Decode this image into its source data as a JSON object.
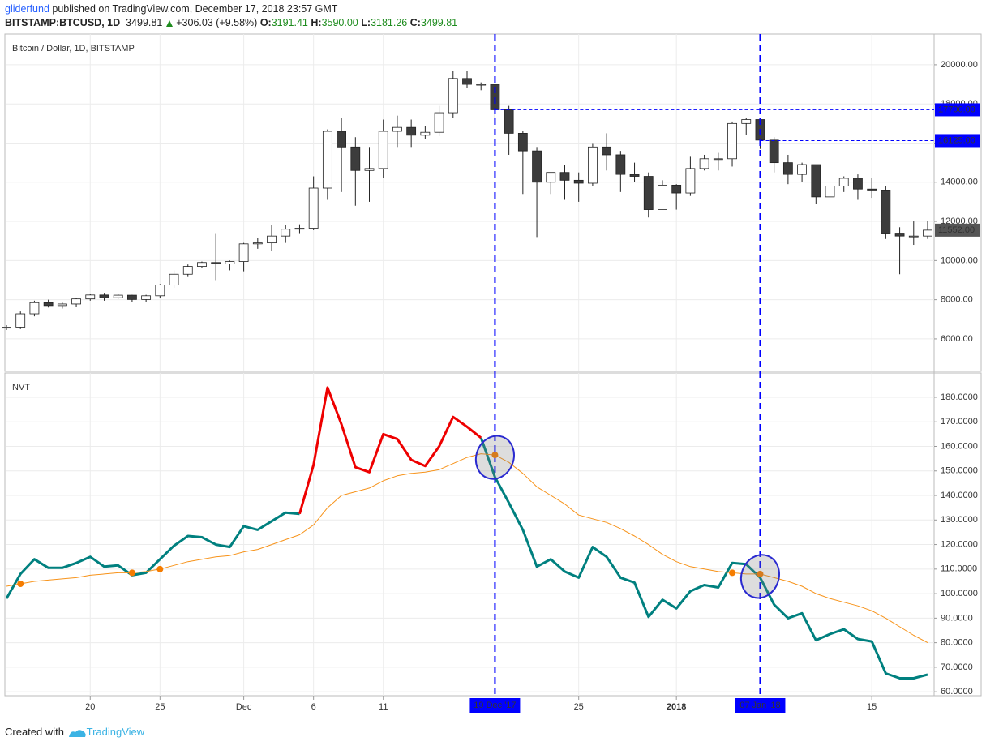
{
  "header": {
    "author": "gliderfund",
    "published": "published on TradingView.com, December 17, 2018 23:57 GMT",
    "symbol": "BITSTAMP:BTCUSD, 1D",
    "price": "3499.81",
    "change": "+306.03 (+9.58%)",
    "open_label": "O:",
    "open": "3191.41",
    "high_label": "H:",
    "high": "3590.00",
    "low_label": "L:",
    "low": "3181.26",
    "close_label": "C:",
    "close": "3499.81"
  },
  "footer": {
    "created": "Created with",
    "brand": "TradingView"
  },
  "chart_data": [
    {
      "type": "candlestick",
      "title": "Bitcoin / Dollar, 1D, BITSTAMP",
      "x": [
        "2017-11-14",
        "2017-11-15",
        "2017-11-16",
        "2017-11-17",
        "2017-11-18",
        "2017-11-19",
        "2017-11-20",
        "2017-11-21",
        "2017-11-22",
        "2017-11-23",
        "2017-11-24",
        "2017-11-25",
        "2017-11-26",
        "2017-11-27",
        "2017-11-28",
        "2017-11-29",
        "2017-11-30",
        "2017-12-01",
        "2017-12-02",
        "2017-12-03",
        "2017-12-04",
        "2017-12-05",
        "2017-12-06",
        "2017-12-07",
        "2017-12-08",
        "2017-12-09",
        "2017-12-10",
        "2017-12-11",
        "2017-12-12",
        "2017-12-13",
        "2017-12-14",
        "2017-12-15",
        "2017-12-16",
        "2017-12-17",
        "2017-12-18",
        "2017-12-19",
        "2017-12-20",
        "2017-12-21",
        "2017-12-22",
        "2017-12-23",
        "2017-12-24",
        "2017-12-25",
        "2017-12-26",
        "2017-12-27",
        "2017-12-28",
        "2017-12-29",
        "2017-12-30",
        "2017-12-31",
        "2018-01-01",
        "2018-01-02",
        "2018-01-03",
        "2018-01-04",
        "2018-01-05",
        "2018-01-06",
        "2018-01-07",
        "2018-01-08",
        "2018-01-09",
        "2018-01-10",
        "2018-01-11",
        "2018-01-12",
        "2018-01-13",
        "2018-01-14",
        "2018-01-15",
        "2018-01-16",
        "2018-01-17",
        "2018-01-18",
        "2018-01-19"
      ],
      "open": [
        6550,
        6600,
        7280,
        7850,
        7700,
        7780,
        8040,
        8240,
        8100,
        8230,
        8010,
        8200,
        8750,
        9300,
        9700,
        9900,
        9830,
        9950,
        10850,
        10900,
        11250,
        11600,
        11650,
        13700,
        16600,
        15800,
        14600,
        14700,
        16600,
        16800,
        16400,
        16550,
        17550,
        19300,
        19000,
        19000,
        17700,
        16500,
        15600,
        14000,
        14500,
        14100,
        13950,
        15800,
        15400,
        14400,
        14300,
        12600,
        13850,
        13450,
        14700,
        15200,
        15200,
        17000,
        17200,
        16150,
        15000,
        14400,
        14900,
        13250,
        13800,
        14200,
        13650,
        13600,
        11400,
        11250,
        11250
      ],
      "high": [
        6700,
        7400,
        7950,
        8000,
        7850,
        8100,
        8300,
        8350,
        8300,
        8250,
        8250,
        8800,
        9500,
        9800,
        9950,
        11400,
        10000,
        10900,
        11150,
        11800,
        11800,
        11850,
        14300,
        16700,
        17300,
        16300,
        15800,
        17200,
        17400,
        17200,
        16850,
        17900,
        19700,
        19700,
        19100,
        19000,
        17900,
        16600,
        15800,
        14400,
        14900,
        14500,
        16000,
        16500,
        15600,
        15000,
        14500,
        14100,
        13900,
        15300,
        15400,
        15500,
        17100,
        17300,
        17200,
        16300,
        15400,
        15000,
        14900,
        14100,
        14300,
        14400,
        14200,
        13800,
        11700,
        12000,
        12000
      ],
      "low": [
        6450,
        6500,
        7150,
        7600,
        7550,
        7650,
        7950,
        7950,
        8050,
        7900,
        7900,
        8100,
        8600,
        9200,
        9600,
        9000,
        9500,
        9450,
        10600,
        10500,
        10900,
        11400,
        11550,
        13100,
        13500,
        12800,
        13000,
        14200,
        15800,
        15800,
        16200,
        16350,
        17300,
        18800,
        18700,
        17300,
        15400,
        13400,
        11200,
        13400,
        13100,
        13000,
        13800,
        14600,
        13500,
        14000,
        12200,
        12600,
        12600,
        13300,
        14600,
        14600,
        14800,
        16400,
        15700,
        14500,
        13900,
        14000,
        12900,
        13000,
        13500,
        13100,
        13200,
        11100,
        9300,
        10800,
        11100
      ],
      "close": [
        6600,
        7280,
        7850,
        7700,
        7780,
        8040,
        8240,
        8100,
        8230,
        8010,
        8200,
        8750,
        9300,
        9700,
        9900,
        9830,
        9950,
        10850,
        10900,
        11250,
        11600,
        11650,
        13700,
        16600,
        15800,
        14600,
        14700,
        16600,
        16800,
        16400,
        16550,
        17550,
        19300,
        19000,
        19000,
        17700,
        16500,
        15600,
        14000,
        14500,
        14100,
        13950,
        15800,
        15400,
        14400,
        14300,
        12600,
        13850,
        13450,
        14700,
        15200,
        15200,
        17000,
        17200,
        16150,
        15000,
        14400,
        14900,
        13250,
        13800,
        14200,
        13650,
        13600,
        11400,
        11250,
        11250,
        11552
      ],
      "up_color": "#ffffff",
      "down_color": "#3c3c3c",
      "last_label": "11552.00",
      "xlim": [
        "2017-11-14",
        "2018-01-19"
      ],
      "xticks": [
        {
          "value": "2017-11-20",
          "label": "20"
        },
        {
          "value": "2017-11-25",
          "label": "25"
        },
        {
          "value": "2017-12-01",
          "label": "Dec"
        },
        {
          "value": "2017-12-06",
          "label": "6"
        },
        {
          "value": "2017-12-11",
          "label": "11"
        },
        {
          "value": "2017-12-25",
          "label": "25"
        },
        {
          "value": "2018-01-01",
          "label": "2018"
        },
        {
          "value": "2018-01-15",
          "label": "15"
        }
      ],
      "ylim": [
        4340,
        21570
      ],
      "yticks": [
        {
          "value": 6000,
          "label": "6000.00"
        },
        {
          "value": 8000,
          "label": "8000.00"
        },
        {
          "value": 10000,
          "label": "10000.00"
        },
        {
          "value": 12000,
          "label": "12000.00"
        },
        {
          "value": 14000,
          "label": "14000.00"
        },
        {
          "value": 16000,
          "label": "16000.00"
        },
        {
          "value": 18000,
          "label": "18000.00"
        },
        {
          "value": 20000,
          "label": "20000.00"
        }
      ],
      "grid": true,
      "annotations": [
        {
          "x": "2017-12-19",
          "x_label": "19 Dec '17",
          "y": 17700,
          "y_label": "17700.00",
          "color": "#0000ff"
        },
        {
          "x": "2018-01-07",
          "x_label": "07 Jan '18",
          "y": 16125,
          "y_label": "16125.00",
          "color": "#0000ff"
        }
      ]
    },
    {
      "type": "line",
      "title": "NVT",
      "x": [
        "2017-11-14",
        "2017-11-15",
        "2017-11-16",
        "2017-11-17",
        "2017-11-18",
        "2017-11-19",
        "2017-11-20",
        "2017-11-21",
        "2017-11-22",
        "2017-11-23",
        "2017-11-24",
        "2017-11-25",
        "2017-11-26",
        "2017-11-27",
        "2017-11-28",
        "2017-11-29",
        "2017-11-30",
        "2017-12-01",
        "2017-12-02",
        "2017-12-03",
        "2017-12-04",
        "2017-12-05",
        "2017-12-06",
        "2017-12-07",
        "2017-12-08",
        "2017-12-09",
        "2017-12-10",
        "2017-12-11",
        "2017-12-12",
        "2017-12-13",
        "2017-12-14",
        "2017-12-15",
        "2017-12-16",
        "2017-12-17",
        "2017-12-18",
        "2017-12-19",
        "2017-12-20",
        "2017-12-21",
        "2017-12-22",
        "2017-12-23",
        "2017-12-24",
        "2017-12-25",
        "2017-12-26",
        "2017-12-27",
        "2017-12-28",
        "2017-12-29",
        "2017-12-30",
        "2017-12-31",
        "2018-01-01",
        "2018-01-02",
        "2018-01-03",
        "2018-01-04",
        "2018-01-05",
        "2018-01-06",
        "2018-01-07",
        "2018-01-08",
        "2018-01-09",
        "2018-01-10",
        "2018-01-11",
        "2018-01-12",
        "2018-01-13",
        "2018-01-14",
        "2018-01-15",
        "2018-01-16",
        "2018-01-17",
        "2018-01-18",
        "2018-01-19"
      ],
      "series": [
        {
          "color": "#00807f",
          "width": 3,
          "values": [
            98,
            108,
            114,
            110.5,
            110.5,
            112.5,
            115,
            111,
            111.5,
            107.5,
            108.5,
            114,
            119.5,
            123.5,
            123,
            120,
            119,
            127.5,
            126,
            129.5,
            133,
            132.5,
            null,
            null,
            null,
            null,
            null,
            null,
            null,
            null,
            null,
            null,
            null,
            null,
            163.5,
            147.5,
            137,
            126,
            111,
            114,
            109,
            106.5,
            119,
            115,
            106.5,
            104.5,
            90.5,
            97.5,
            94,
            101,
            103.5,
            102.5,
            112.5,
            112,
            106.5,
            95.5,
            90,
            92,
            81,
            83.5,
            85.5,
            81.5,
            80.5,
            67.5,
            65.5,
            65.5,
            67
          ]
        },
        {
          "color": "#ee0000",
          "width": 3,
          "values": [
            null,
            null,
            null,
            null,
            null,
            null,
            null,
            null,
            null,
            null,
            null,
            null,
            null,
            null,
            null,
            null,
            null,
            null,
            null,
            null,
            null,
            132.5,
            152.5,
            184,
            169,
            151.5,
            149.5,
            165,
            163,
            154.5,
            152,
            160,
            172,
            168,
            163.5,
            null,
            null,
            null,
            null,
            null,
            null,
            null,
            null,
            null,
            null,
            null,
            null,
            null,
            null,
            null,
            null,
            null,
            null,
            null,
            null,
            null,
            null,
            null,
            null,
            null,
            null,
            null,
            null,
            null,
            null,
            null,
            null
          ]
        },
        {
          "color": "#f7931a",
          "width": 1,
          "values": [
            103,
            104,
            105,
            105.5,
            106,
            106.5,
            107.5,
            108,
            108.5,
            108.5,
            109,
            110,
            111.5,
            113,
            114,
            115,
            115.5,
            117,
            118,
            120,
            122,
            124,
            128,
            135,
            140,
            141.5,
            143,
            146,
            148,
            149,
            149.5,
            150.5,
            153,
            155.5,
            157,
            156.5,
            153.5,
            149,
            143.5,
            140,
            136.5,
            132,
            130.5,
            129,
            126.5,
            123.5,
            120,
            116,
            113,
            111,
            110,
            109,
            108.5,
            108,
            108,
            106.5,
            105,
            103,
            100,
            98,
            96.5,
            95,
            93,
            90,
            86.5,
            83,
            80
          ],
          "dots": [
            "2017-11-15",
            "2017-11-23",
            "2017-11-25",
            "2017-12-19",
            "2018-01-05",
            "2018-01-07"
          ]
        }
      ],
      "ylim": [
        58.4,
        189.9
      ],
      "yticks": [
        {
          "value": 60,
          "label": "60.0000"
        },
        {
          "value": 70,
          "label": "70.0000"
        },
        {
          "value": 80,
          "label": "80.0000"
        },
        {
          "value": 90,
          "label": "90.0000"
        },
        {
          "value": 100,
          "label": "100.0000"
        },
        {
          "value": 110,
          "label": "110.0000"
        },
        {
          "value": 120,
          "label": "120.0000"
        },
        {
          "value": 130,
          "label": "130.0000"
        },
        {
          "value": 140,
          "label": "140.0000"
        },
        {
          "value": 150,
          "label": "150.0000"
        },
        {
          "value": 160,
          "label": "160.0000"
        },
        {
          "value": 170,
          "label": "170.0000"
        },
        {
          "value": 180,
          "label": "180.0000"
        }
      ],
      "grid": true
    }
  ]
}
